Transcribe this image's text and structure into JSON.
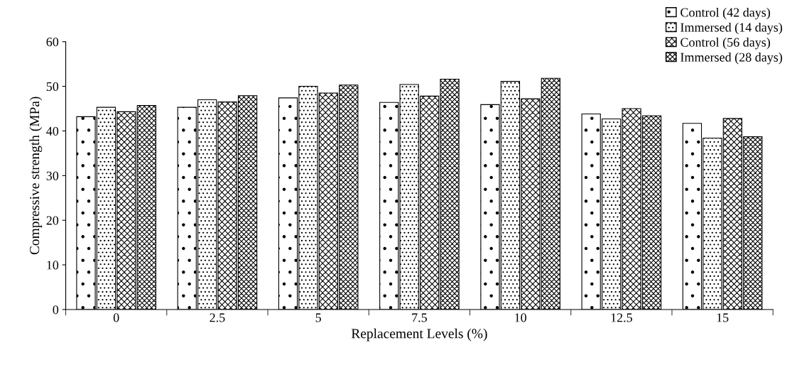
{
  "chart_data": {
    "type": "bar",
    "xlabel": "Replacement Levels (%)",
    "ylabel": "Compressive strength (MPa)",
    "categories": [
      "0",
      "2.5",
      "5",
      "7.5",
      "10",
      "12.5",
      "15"
    ],
    "series": [
      {
        "name": "Control (42 days)",
        "color": "#000000",
        "values": [
          43.2,
          45.3,
          47.4,
          46.4,
          45.9,
          43.8,
          41.7
        ]
      },
      {
        "name": "Immersed (14 days)",
        "color": "#000000",
        "values": [
          45.3,
          47.0,
          50.0,
          50.4,
          51.1,
          42.7,
          38.4
        ]
      },
      {
        "name": "Control (56 days)",
        "color": "#000000",
        "values": [
          44.3,
          46.5,
          48.5,
          47.8,
          47.2,
          45.0,
          42.8
        ]
      },
      {
        "name": "Immersed (28 days)",
        "color": "#000000",
        "values": [
          45.7,
          47.9,
          50.3,
          51.6,
          51.8,
          43.4,
          38.7
        ]
      }
    ],
    "ylim": [
      0,
      60
    ],
    "yticks": [
      0,
      10,
      20,
      30,
      40,
      50,
      60
    ],
    "grid": false,
    "legend": "top right"
  }
}
